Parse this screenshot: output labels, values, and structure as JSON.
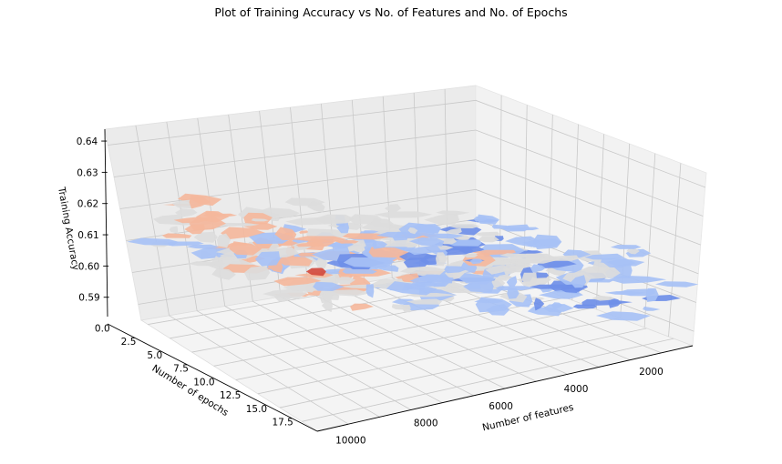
{
  "chart_data": {
    "type": "surface3d",
    "title": "Plot of Training Accuracy vs No. of Features and No. of Epochs",
    "xlabel": "Number of features",
    "ylabel": "Number of epochs",
    "zlabel": "Training Accuracy",
    "colormap": "coolwarm",
    "x_ticks": [
      "2000",
      "4000",
      "6000",
      "8000",
      "10000"
    ],
    "y_ticks": [
      "0.0",
      "2.5",
      "5.0",
      "7.5",
      "10.0",
      "12.5",
      "15.0",
      "17.5"
    ],
    "z_ticks": [
      "0.59",
      "0.60",
      "0.61",
      "0.62",
      "0.63",
      "0.64"
    ],
    "xlim": [
      0,
      11000
    ],
    "ylim": [
      0,
      19
    ],
    "zlim": [
      0.585,
      0.645
    ],
    "grid": true,
    "colors": {
      "low": "#6f8fe8",
      "mid_low": "#a7c1f5",
      "mid": "#dcdcdc",
      "mid_high": "#f4b79c",
      "high": "#d24a3e"
    }
  }
}
